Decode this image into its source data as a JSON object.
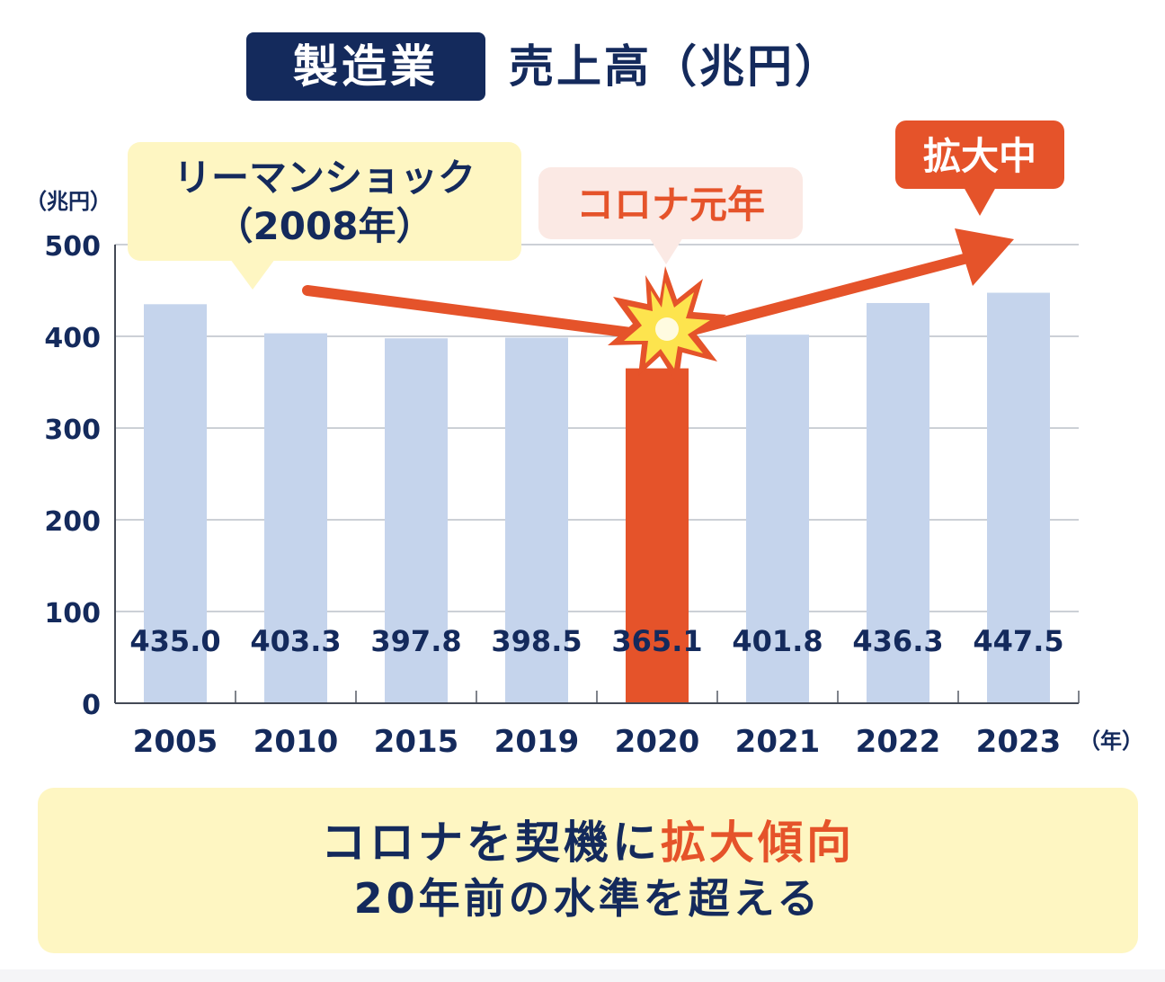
{
  "header": {
    "badge": "製造業",
    "title": "売上高（兆円）"
  },
  "annotations": {
    "lehman_line1": "リーマンショック",
    "lehman_line2": "（2008年）",
    "corona": "コロナ元年",
    "expanding": "拡大中"
  },
  "summary": {
    "line1_part1": "コロナを契機に",
    "line1_highlight": "拡大傾向",
    "line2": "20年前の水準を超える"
  },
  "colors": {
    "navy": "#142a5c",
    "bar": "#c5d4ec",
    "highlight_bar": "#e5532a",
    "accent": "#e5532a",
    "callout_yellow": "#fef6c2",
    "callout_pink": "#fbe9e4"
  },
  "chart_data": {
    "type": "bar",
    "categories": [
      "2005",
      "2010",
      "2015",
      "2019",
      "2020",
      "2021",
      "2022",
      "2023"
    ],
    "values": [
      435.0,
      403.3,
      397.8,
      398.5,
      365.1,
      401.8,
      436.3,
      447.5
    ],
    "value_labels": [
      "435.0",
      "403.3",
      "397.8",
      "398.5",
      "365.1",
      "401.8",
      "436.3",
      "447.5"
    ],
    "highlight_category": "2020",
    "ylabel": "（兆円）",
    "xlabel": "（年）",
    "ylim": [
      0,
      500
    ],
    "yticks": [
      0,
      100,
      200,
      300,
      400,
      500
    ],
    "grid": true
  }
}
